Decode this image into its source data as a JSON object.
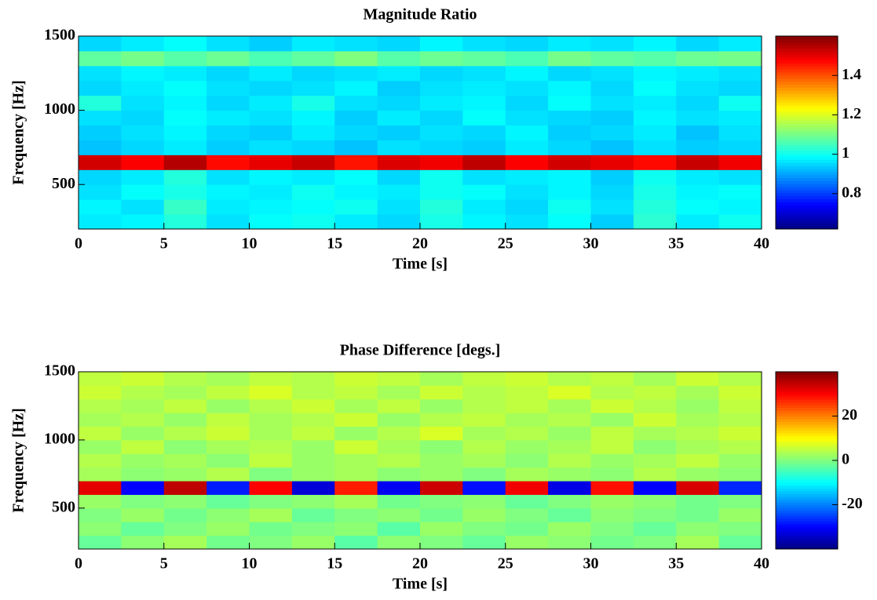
{
  "chart_data": [
    {
      "type": "heatmap",
      "title": "Magnitude Ratio",
      "xlabel": "Time [s]",
      "ylabel": "Frequency [Hz]",
      "colormap": "jet",
      "x": [
        1.25,
        3.75,
        6.25,
        8.75,
        11.25,
        13.75,
        16.25,
        18.75,
        21.25,
        23.75,
        26.25,
        28.75,
        31.25,
        33.75,
        36.25,
        38.75
      ],
      "y": [
        250,
        350,
        450,
        550,
        650,
        750,
        850,
        950,
        1050,
        1150,
        1250,
        1350,
        1450
      ],
      "values": [
        [
          0.97,
          0.98,
          1.02,
          0.96,
          0.99,
          1.0,
          0.97,
          0.95,
          1.01,
          0.98,
          0.96,
          0.99,
          0.94,
          1.03,
          0.97,
          1.0
        ],
        [
          0.98,
          0.96,
          1.04,
          0.97,
          0.98,
          0.99,
          1.0,
          0.96,
          1.02,
          0.97,
          0.95,
          1.0,
          0.96,
          1.02,
          0.99,
          0.98
        ],
        [
          0.96,
          0.99,
          1.01,
          0.98,
          0.97,
          1.0,
          0.98,
          0.97,
          1.0,
          0.99,
          0.96,
          0.98,
          0.95,
          1.01,
          0.98,
          0.99
        ],
        [
          0.95,
          0.97,
          1.02,
          0.96,
          0.98,
          0.97,
          0.99,
          0.95,
          1.0,
          0.96,
          0.97,
          0.98,
          0.94,
          1.0,
          0.97,
          0.96
        ],
        [
          1.52,
          1.48,
          1.55,
          1.47,
          1.5,
          1.53,
          1.46,
          1.51,
          1.49,
          1.54,
          1.48,
          1.52,
          1.5,
          1.47,
          1.53,
          1.49
        ],
        [
          0.93,
          0.95,
          0.97,
          0.94,
          0.96,
          0.95,
          0.93,
          0.96,
          0.95,
          0.94,
          0.97,
          0.95,
          0.93,
          0.96,
          0.94,
          0.95
        ],
        [
          0.94,
          0.96,
          0.98,
          0.95,
          0.94,
          0.97,
          0.95,
          0.94,
          0.96,
          0.95,
          0.98,
          0.94,
          0.95,
          0.97,
          0.93,
          0.96
        ],
        [
          0.96,
          0.95,
          0.99,
          0.97,
          0.96,
          0.98,
          0.94,
          0.97,
          0.95,
          0.99,
          0.96,
          0.95,
          0.94,
          0.98,
          0.96,
          0.97
        ],
        [
          1.02,
          0.96,
          0.98,
          0.95,
          0.97,
          1.01,
          0.96,
          0.95,
          0.97,
          0.98,
          0.95,
          0.99,
          0.96,
          0.97,
          0.95,
          1.0
        ],
        [
          0.95,
          0.97,
          0.99,
          0.96,
          0.95,
          0.96,
          0.98,
          0.94,
          0.96,
          0.97,
          0.96,
          0.98,
          0.95,
          0.99,
          0.96,
          0.95
        ],
        [
          0.96,
          0.98,
          0.97,
          0.95,
          0.97,
          0.95,
          0.96,
          0.97,
          0.95,
          0.96,
          0.98,
          0.95,
          0.96,
          0.98,
          0.97,
          0.96
        ],
        [
          1.08,
          1.1,
          1.07,
          1.09,
          1.06,
          1.08,
          1.11,
          1.07,
          1.09,
          1.08,
          1.06,
          1.1,
          1.08,
          1.07,
          1.09,
          1.1
        ],
        [
          0.95,
          0.97,
          0.99,
          0.96,
          0.94,
          0.97,
          0.96,
          0.95,
          0.98,
          0.96,
          0.95,
          0.97,
          0.96,
          0.98,
          0.95,
          0.97
        ]
      ],
      "xlim": [
        0,
        40
      ],
      "ylim": [
        200,
        1500
      ],
      "clim": [
        0.62,
        1.6
      ],
      "xticks": [
        0,
        5,
        10,
        15,
        20,
        25,
        30,
        35,
        40
      ],
      "yticks": [
        500,
        1000,
        1500
      ],
      "cticks": [
        0.8,
        1,
        1.2,
        1.4
      ]
    },
    {
      "type": "heatmap",
      "title": "Phase Difference [degs.]",
      "xlabel": "Time [s]",
      "ylabel": "Frequency [Hz]",
      "colormap": "jet",
      "x": [
        1.25,
        3.75,
        6.25,
        8.75,
        11.25,
        13.75,
        16.25,
        18.75,
        21.25,
        23.75,
        26.25,
        28.75,
        31.25,
        33.75,
        36.25,
        38.75
      ],
      "y": [
        250,
        350,
        450,
        550,
        650,
        750,
        850,
        950,
        1050,
        1150,
        1250,
        1350,
        1450
      ],
      "values": [
        [
          -2,
          1,
          3,
          -1,
          0,
          2,
          -3,
          1,
          0,
          -2,
          2,
          1,
          -1,
          0,
          3,
          -2
        ],
        [
          1,
          -2,
          0,
          2,
          -1,
          0,
          1,
          -3,
          2,
          0,
          -1,
          2,
          0,
          -2,
          1,
          0
        ],
        [
          0,
          2,
          -1,
          1,
          3,
          -2,
          0,
          1,
          -1,
          2,
          0,
          -2,
          1,
          0,
          -1,
          2
        ],
        [
          2,
          0,
          1,
          -2,
          0,
          1,
          3,
          -1,
          0,
          1,
          -2,
          0,
          2,
          1,
          -1,
          0
        ],
        [
          32,
          -30,
          35,
          -28,
          30,
          -33,
          28,
          -31,
          34,
          -29,
          31,
          -32,
          29,
          -30,
          33,
          -27
        ],
        [
          3,
          1,
          2,
          4,
          0,
          2,
          3,
          1,
          2,
          0,
          3,
          2,
          1,
          4,
          2,
          1
        ],
        [
          4,
          2,
          3,
          1,
          5,
          2,
          3,
          4,
          2,
          3,
          1,
          4,
          2,
          3,
          5,
          2
        ],
        [
          2,
          5,
          1,
          3,
          4,
          2,
          6,
          3,
          1,
          4,
          2,
          3,
          5,
          1,
          3,
          4
        ],
        [
          5,
          2,
          4,
          6,
          3,
          5,
          2,
          4,
          7,
          3,
          4,
          2,
          5,
          3,
          4,
          6
        ],
        [
          3,
          4,
          2,
          5,
          3,
          4,
          6,
          2,
          4,
          5,
          3,
          4,
          2,
          6,
          3,
          4
        ],
        [
          4,
          3,
          5,
          2,
          4,
          6,
          3,
          5,
          2,
          4,
          5,
          3,
          6,
          4,
          2,
          5
        ],
        [
          6,
          4,
          3,
          5,
          7,
          4,
          5,
          3,
          6,
          4,
          5,
          7,
          4,
          5,
          3,
          6
        ],
        [
          5,
          6,
          4,
          3,
          5,
          4,
          6,
          5,
          3,
          5,
          6,
          4,
          5,
          3,
          6,
          4
        ]
      ],
      "xlim": [
        0,
        40
      ],
      "ylim": [
        200,
        1500
      ],
      "clim": [
        -40,
        40
      ],
      "xticks": [
        0,
        5,
        10,
        15,
        20,
        25,
        30,
        35,
        40
      ],
      "yticks": [
        500,
        1000,
        1500
      ],
      "cticks": [
        -20,
        0,
        20
      ]
    }
  ]
}
